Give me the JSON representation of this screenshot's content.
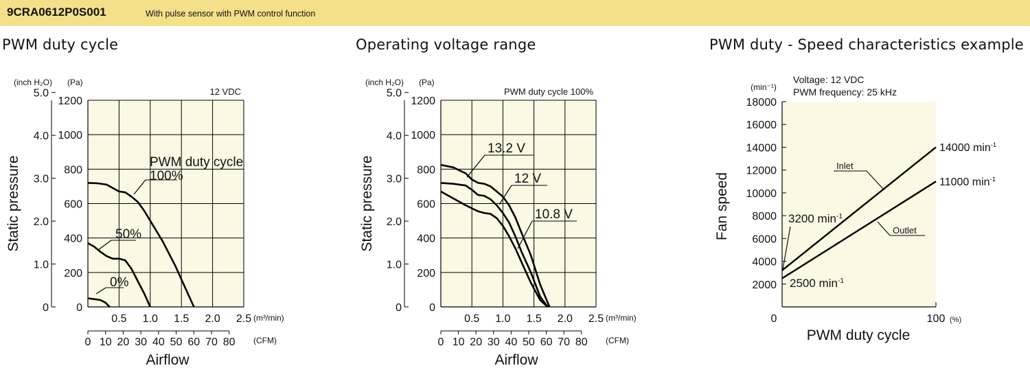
{
  "header": {
    "model": "9CRA0612P0S001",
    "subtitle": "With pulse sensor with PWM control function"
  },
  "panels": [
    {
      "title": "PWM duty cycle"
    },
    {
      "title": "Operating voltage range"
    },
    {
      "title": "PWM duty - Speed characteristics example"
    }
  ],
  "colors": {
    "header_bg": "#f5e08a",
    "plot_bg": "#fbf8e4",
    "line": "#000000"
  },
  "chart_data": [
    {
      "type": "line",
      "title": "PWM duty cycle",
      "condition": "12 VDC",
      "xlabel": "Airflow",
      "ylabel": "Static pressure",
      "x_unit": "(m³/min)",
      "x2_unit": "(CFM)",
      "y_unit": "(Pa)",
      "y2_unit": "(inch H₂O)",
      "xlim": [
        0,
        2.5
      ],
      "ylim": [
        0,
        1200
      ],
      "x_ticks": [
        "0.5",
        "1.0",
        "1.5",
        "2.0",
        "2.5"
      ],
      "x2_ticks": [
        "0",
        "10",
        "20",
        "30",
        "40",
        "50",
        "60",
        "70",
        "80"
      ],
      "y_ticks": [
        "0",
        "200",
        "400",
        "600",
        "800",
        "1000",
        "1200"
      ],
      "y2_ticks": [
        "0",
        "1.0",
        "2.0",
        "3.0",
        "4.0",
        "5.0"
      ],
      "legend_heading": "PWM duty cycle",
      "grid": true,
      "series": [
        {
          "name": "100%",
          "x": [
            0,
            0.15,
            0.3,
            0.4,
            0.5,
            0.6,
            0.7,
            0.8,
            0.9,
            1.0,
            1.2,
            1.4,
            1.55,
            1.7
          ],
          "y": [
            720,
            718,
            710,
            690,
            670,
            665,
            640,
            610,
            560,
            500,
            380,
            240,
            120,
            0
          ]
        },
        {
          "name": "50%",
          "x": [
            0,
            0.1,
            0.2,
            0.3,
            0.4,
            0.5,
            0.6,
            0.7,
            0.8,
            0.9,
            1.0
          ],
          "y": [
            370,
            350,
            320,
            295,
            280,
            280,
            270,
            220,
            150,
            80,
            0
          ]
        },
        {
          "name": "0%",
          "x": [
            0,
            0.1,
            0.2,
            0.28,
            0.35
          ],
          "y": [
            50,
            45,
            40,
            25,
            0
          ]
        }
      ]
    },
    {
      "type": "line",
      "title": "Operating voltage range",
      "condition": "PWM duty cycle 100%",
      "xlabel": "Airflow",
      "ylabel": "Static pressure",
      "x_unit": "(m³/min)",
      "x2_unit": "(CFM)",
      "y_unit": "(Pa)",
      "y2_unit": "(inch H₂O)",
      "xlim": [
        0,
        2.5
      ],
      "ylim": [
        0,
        1200
      ],
      "x_ticks": [
        "0.5",
        "1.0",
        "1.5",
        "2.0",
        "2.5"
      ],
      "x2_ticks": [
        "0",
        "10",
        "20",
        "30",
        "40",
        "50",
        "60",
        "70",
        "80"
      ],
      "y_ticks": [
        "0",
        "200",
        "400",
        "600",
        "800",
        "1000",
        "1200"
      ],
      "y2_ticks": [
        "0",
        "1.0",
        "2.0",
        "3.0",
        "4.0",
        "5.0"
      ],
      "grid": true,
      "series": [
        {
          "name": "13.2 V",
          "x": [
            0,
            0.2,
            0.4,
            0.5,
            0.6,
            0.7,
            0.8,
            0.9,
            1.0,
            1.1,
            1.2,
            1.3,
            1.45,
            1.6,
            1.75
          ],
          "y": [
            825,
            810,
            775,
            740,
            720,
            715,
            700,
            670,
            640,
            590,
            520,
            430,
            300,
            130,
            0
          ]
        },
        {
          "name": "12 V",
          "x": [
            0,
            0.2,
            0.4,
            0.5,
            0.6,
            0.7,
            0.8,
            0.9,
            1.0,
            1.1,
            1.2,
            1.3,
            1.45,
            1.6,
            1.72
          ],
          "y": [
            720,
            715,
            705,
            680,
            650,
            645,
            625,
            590,
            545,
            490,
            410,
            320,
            200,
            60,
            0
          ]
        },
        {
          "name": "10.8 V",
          "x": [
            0,
            0.2,
            0.4,
            0.6,
            0.7,
            0.8,
            0.9,
            1.0,
            1.1,
            1.2,
            1.3,
            1.45,
            1.6,
            1.72
          ],
          "y": [
            670,
            630,
            590,
            555,
            545,
            540,
            515,
            470,
            410,
            340,
            260,
            140,
            40,
            0
          ]
        }
      ]
    },
    {
      "type": "line",
      "title": "PWM duty - Speed characteristics example",
      "condition_lines": [
        "Voltage: 12 VDC",
        "PWM frequency: 25 kHz"
      ],
      "xlabel": "PWM duty cycle",
      "ylabel": "Fan speed",
      "x_unit": "(%)",
      "y_unit": "(min⁻¹)",
      "xlim": [
        0,
        100
      ],
      "ylim": [
        0,
        18000
      ],
      "x_ticks": [
        "0",
        "100"
      ],
      "y_ticks": [
        "2000",
        "4000",
        "6000",
        "8000",
        "10000",
        "12000",
        "14000",
        "16000",
        "18000"
      ],
      "grid": false,
      "series": [
        {
          "name": "Inlet",
          "x": [
            0,
            100
          ],
          "y": [
            3200,
            14000
          ]
        },
        {
          "name": "Outlet",
          "x": [
            0,
            100
          ],
          "y": [
            2500,
            11000
          ]
        }
      ],
      "annotations": [
        {
          "base": "3200 min",
          "sup": "-1"
        },
        {
          "base": "2500 min",
          "sup": "-1"
        },
        {
          "base": "14000 min",
          "sup": "-1"
        },
        {
          "base": "11000 min",
          "sup": "-1"
        }
      ]
    }
  ]
}
